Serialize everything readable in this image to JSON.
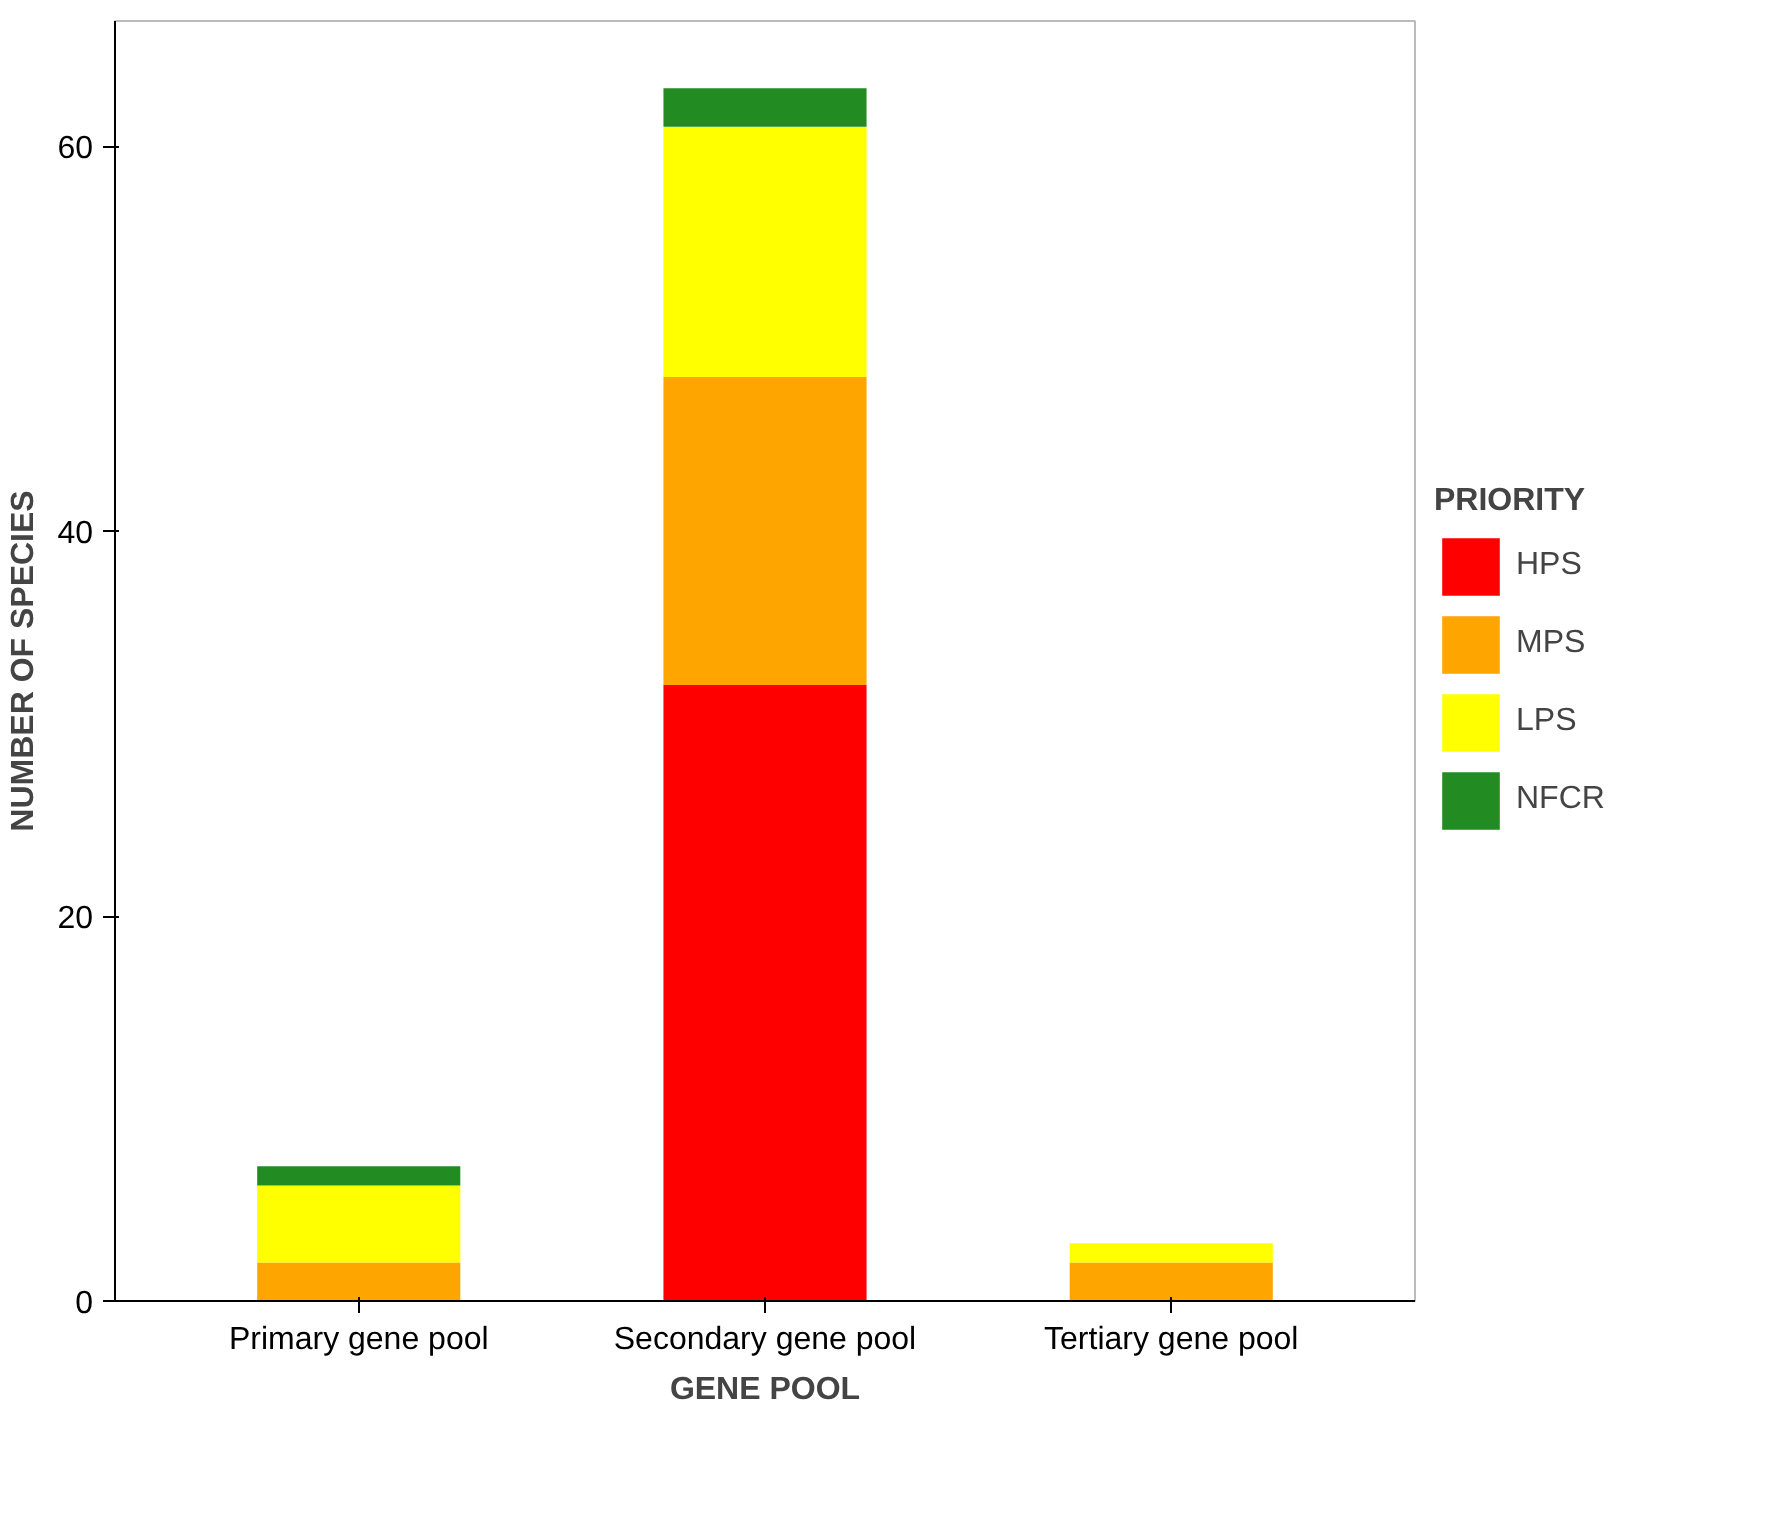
{
  "chart_data": {
    "type": "bar",
    "stacked": true,
    "xlabel": "GENE POOL",
    "ylabel": "NUMBER OF SPECIES",
    "legend_title": "PRIORITY",
    "legend": "right",
    "categories": [
      "Primary gene pool",
      "Secondary gene pool",
      "Tertiary gene pool"
    ],
    "series": [
      {
        "name": "HPS",
        "color": "#ff0000",
        "values": [
          0,
          32,
          0
        ]
      },
      {
        "name": "MPS",
        "color": "#ffa500",
        "values": [
          2,
          16,
          2
        ]
      },
      {
        "name": "LPS",
        "color": "#ffff00",
        "values": [
          4,
          13,
          1
        ]
      },
      {
        "name": "NFCR",
        "color": "#228b22",
        "values": [
          1,
          2,
          0
        ]
      }
    ],
    "ylim": [
      0,
      66.5
    ],
    "yticks": [
      0,
      20,
      40,
      60
    ]
  }
}
